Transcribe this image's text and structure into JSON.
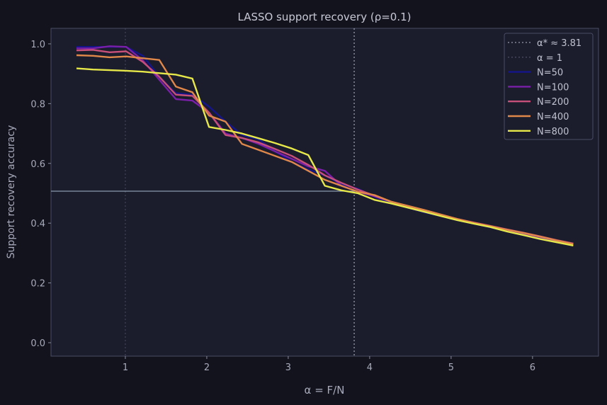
{
  "chart_data": {
    "type": "line",
    "title": "LASSO support recovery  (ρ=0.1)",
    "xlabel": "α = F/N",
    "ylabel": "Support recovery accuracy",
    "xlim": [
      0.087,
      6.81
    ],
    "ylim": [
      -0.045,
      1.052
    ],
    "xticks": [
      1,
      2,
      3,
      4,
      5,
      6
    ],
    "yticks": [
      0.0,
      0.2,
      0.4,
      0.6,
      0.8,
      1.0
    ],
    "ytick_labels": [
      "0.0",
      "0.2",
      "0.4",
      "0.6",
      "0.8",
      "1.0"
    ],
    "grid": false,
    "legend_position": "top-right",
    "reference_lines": [
      {
        "name": "α* ≈ 3.81",
        "orientation": "vertical",
        "value": 3.81,
        "style": "dotted",
        "color": "#9a9cb0"
      },
      {
        "name": "α = 1",
        "orientation": "vertical",
        "value": 1,
        "style": "dotted",
        "color": "#4a4c60"
      },
      {
        "name": "",
        "orientation": "horizontal",
        "value": 0.507,
        "x_end": 3.83,
        "style": "solid",
        "color": "#8a9ab0"
      }
    ],
    "x": [
      0.4,
      0.603,
      0.807,
      1.01,
      1.213,
      1.417,
      1.62,
      1.823,
      2.027,
      2.23,
      2.433,
      2.637,
      2.84,
      3.043,
      3.247,
      3.45,
      3.653,
      3.857,
      4.06,
      4.263,
      4.467,
      4.67,
      4.873,
      5.077,
      5.28,
      5.483,
      5.687,
      5.89,
      6.093,
      6.297,
      6.5
    ],
    "series": [
      {
        "name": "N=50",
        "color": "#15158a",
        "values": [
          0.99,
          0.99,
          0.99,
          0.99,
          0.96,
          0.89,
          0.835,
          0.83,
          0.79,
          0.74,
          0.695,
          0.68,
          0.64,
          0.605,
          0.58,
          0.56,
          0.53,
          0.515,
          0.488,
          0.468,
          0.452,
          0.436,
          0.424,
          0.41,
          0.398,
          0.386,
          0.374,
          0.362,
          0.35,
          0.34,
          0.33
        ]
      },
      {
        "name": "N=100",
        "color": "#7a1fa8",
        "values": [
          0.985,
          0.985,
          0.992,
          0.99,
          0.945,
          0.88,
          0.815,
          0.81,
          0.77,
          0.7,
          0.685,
          0.665,
          0.64,
          0.615,
          0.59,
          0.575,
          0.525,
          0.505,
          0.49,
          0.472,
          0.455,
          0.44,
          0.426,
          0.412,
          0.4,
          0.389,
          0.376,
          0.365,
          0.353,
          0.341,
          0.331
        ]
      },
      {
        "name": "N=200",
        "color": "#c6507a",
        "values": [
          0.978,
          0.98,
          0.972,
          0.975,
          0.94,
          0.89,
          0.83,
          0.826,
          0.77,
          0.695,
          0.685,
          0.67,
          0.648,
          0.625,
          0.595,
          0.56,
          0.535,
          0.512,
          0.492,
          0.472,
          0.457,
          0.443,
          0.428,
          0.414,
          0.402,
          0.391,
          0.379,
          0.368,
          0.356,
          0.343,
          0.332
        ]
      },
      {
        "name": "N=400",
        "color": "#e0884a",
        "values": [
          0.962,
          0.96,
          0.955,
          0.958,
          0.952,
          0.946,
          0.857,
          0.838,
          0.76,
          0.74,
          0.665,
          0.645,
          0.625,
          0.605,
          0.575,
          0.545,
          0.525,
          0.505,
          0.494,
          0.472,
          0.458,
          0.444,
          0.429,
          0.414,
          0.401,
          0.39,
          0.378,
          0.367,
          0.355,
          0.342,
          0.33
        ]
      },
      {
        "name": "N=800",
        "color": "#e6e84a",
        "values": [
          0.918,
          0.914,
          0.912,
          0.91,
          0.907,
          0.902,
          0.897,
          0.884,
          0.722,
          0.712,
          0.7,
          0.684,
          0.668,
          0.65,
          0.628,
          0.525,
          0.51,
          0.5,
          0.478,
          0.466,
          0.452,
          0.438,
          0.424,
          0.41,
          0.398,
          0.387,
          0.372,
          0.36,
          0.347,
          0.336,
          0.325
        ]
      }
    ]
  }
}
